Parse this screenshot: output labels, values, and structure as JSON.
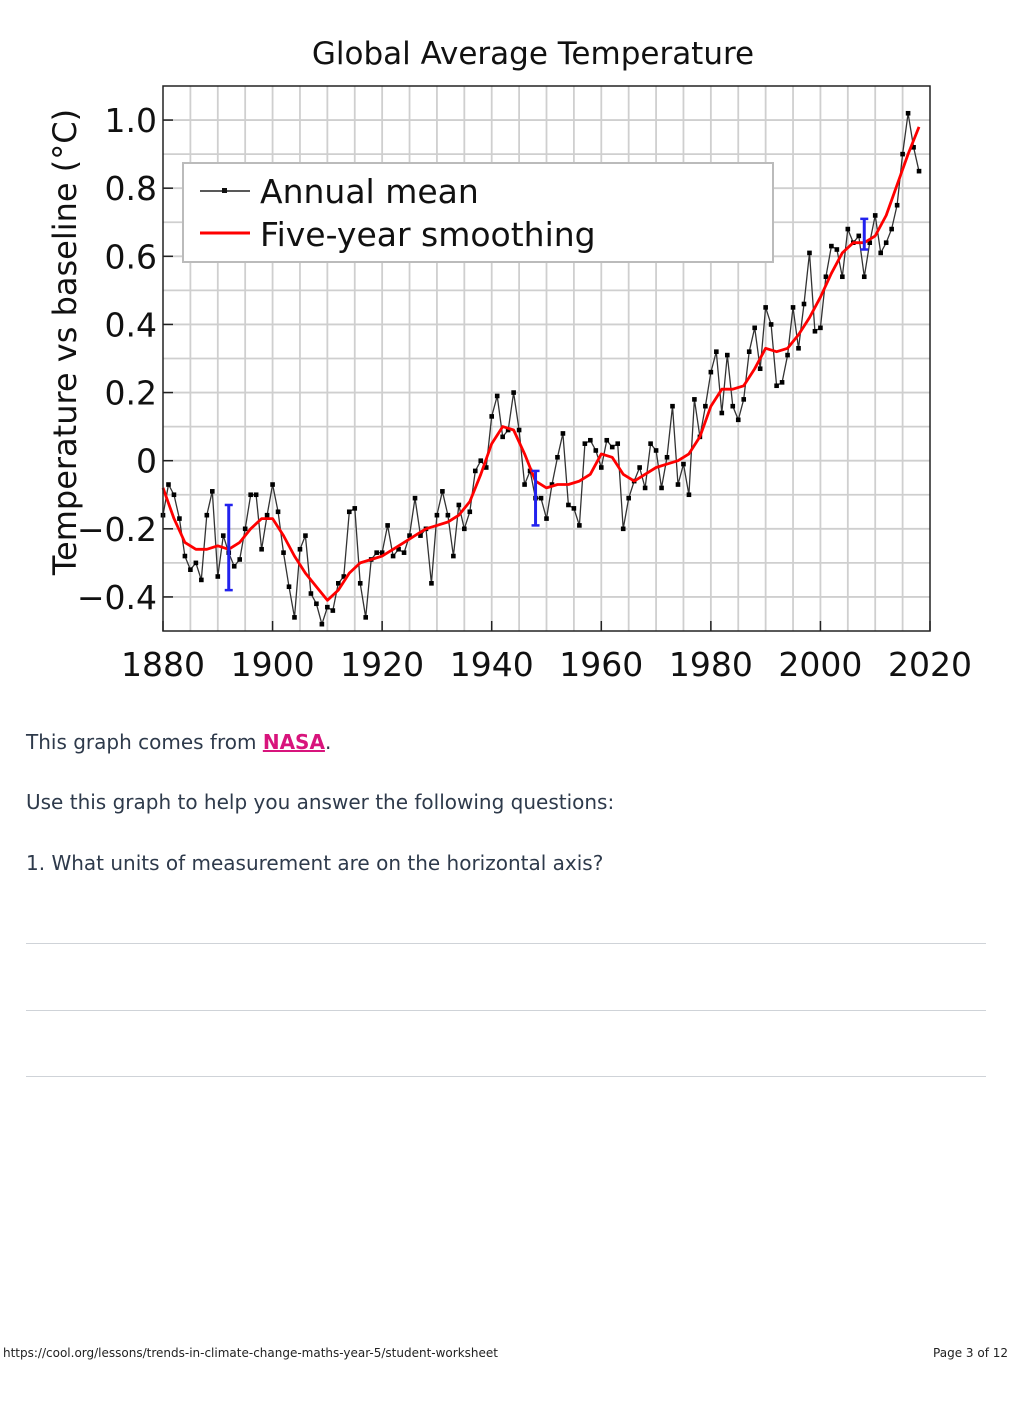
{
  "chart_data": {
    "type": "line",
    "title": "Global Average Temperature",
    "xlabel": "",
    "ylabel": "Temperature vs baseline (°C)",
    "xlim": [
      1880,
      2020
    ],
    "ylim": [
      -0.5,
      1.1
    ],
    "x_ticks": [
      1880,
      1900,
      1920,
      1940,
      1960,
      1980,
      2000,
      2020
    ],
    "y_ticks": [
      1.0,
      0.8,
      0.6,
      0.4,
      0.2,
      0,
      -0.2,
      -0.4
    ],
    "y_tick_labels": [
      "1.0",
      "0.8",
      "0.6",
      "0.4",
      "0.2",
      "0",
      "−0.2",
      "−0.4"
    ],
    "grid": true,
    "legend_position": "top-left",
    "series": [
      {
        "name": "Annual mean",
        "color": "#222222",
        "marker": "square",
        "x": [
          1880,
          1881,
          1882,
          1883,
          1884,
          1885,
          1886,
          1887,
          1888,
          1889,
          1890,
          1891,
          1892,
          1893,
          1894,
          1895,
          1896,
          1897,
          1898,
          1899,
          1900,
          1901,
          1902,
          1903,
          1904,
          1905,
          1906,
          1907,
          1908,
          1909,
          1910,
          1911,
          1912,
          1913,
          1914,
          1915,
          1916,
          1917,
          1918,
          1919,
          1920,
          1921,
          1922,
          1923,
          1924,
          1925,
          1926,
          1927,
          1928,
          1929,
          1930,
          1931,
          1932,
          1933,
          1934,
          1935,
          1936,
          1937,
          1938,
          1939,
          1940,
          1941,
          1942,
          1943,
          1944,
          1945,
          1946,
          1947,
          1948,
          1949,
          1950,
          1951,
          1952,
          1953,
          1954,
          1955,
          1956,
          1957,
          1958,
          1959,
          1960,
          1961,
          1962,
          1963,
          1964,
          1965,
          1966,
          1967,
          1968,
          1969,
          1970,
          1971,
          1972,
          1973,
          1974,
          1975,
          1976,
          1977,
          1978,
          1979,
          1980,
          1981,
          1982,
          1983,
          1984,
          1985,
          1986,
          1987,
          1988,
          1989,
          1990,
          1991,
          1992,
          1993,
          1994,
          1995,
          1996,
          1997,
          1998,
          1999,
          2000,
          2001,
          2002,
          2003,
          2004,
          2005,
          2006,
          2007,
          2008,
          2009,
          2010,
          2011,
          2012,
          2013,
          2014,
          2015,
          2016,
          2017,
          2018
        ],
        "values": [
          -0.16,
          -0.07,
          -0.1,
          -0.17,
          -0.28,
          -0.32,
          -0.3,
          -0.35,
          -0.16,
          -0.09,
          -0.34,
          -0.22,
          -0.27,
          -0.31,
          -0.29,
          -0.2,
          -0.1,
          -0.1,
          -0.26,
          -0.16,
          -0.07,
          -0.15,
          -0.27,
          -0.37,
          -0.46,
          -0.26,
          -0.22,
          -0.39,
          -0.42,
          -0.48,
          -0.43,
          -0.44,
          -0.36,
          -0.34,
          -0.15,
          -0.14,
          -0.36,
          -0.46,
          -0.29,
          -0.27,
          -0.27,
          -0.19,
          -0.28,
          -0.26,
          -0.27,
          -0.22,
          -0.11,
          -0.22,
          -0.2,
          -0.36,
          -0.16,
          -0.09,
          -0.16,
          -0.28,
          -0.13,
          -0.2,
          -0.15,
          -0.03,
          0.0,
          -0.02,
          0.13,
          0.19,
          0.07,
          0.09,
          0.2,
          0.09,
          -0.07,
          -0.03,
          -0.11,
          -0.11,
          -0.17,
          -0.07,
          0.01,
          0.08,
          -0.13,
          -0.14,
          -0.19,
          0.05,
          0.06,
          0.03,
          -0.02,
          0.06,
          0.04,
          0.05,
          -0.2,
          -0.11,
          -0.06,
          -0.02,
          -0.08,
          0.05,
          0.03,
          -0.08,
          0.01,
          0.16,
          -0.07,
          -0.01,
          -0.1,
          0.18,
          0.07,
          0.16,
          0.26,
          0.32,
          0.14,
          0.31,
          0.16,
          0.12,
          0.18,
          0.32,
          0.39,
          0.27,
          0.45,
          0.4,
          0.22,
          0.23,
          0.31,
          0.45,
          0.33,
          0.46,
          0.61,
          0.38,
          0.39,
          0.54,
          0.63,
          0.62,
          0.54,
          0.68,
          0.64,
          0.66,
          0.54,
          0.64,
          0.72,
          0.61,
          0.64,
          0.68,
          0.75,
          0.9,
          1.02,
          0.92,
          0.85
        ]
      },
      {
        "name": "Five-year smoothing",
        "color": "#ff0000",
        "x": [
          1880,
          1882,
          1884,
          1886,
          1888,
          1890,
          1892,
          1894,
          1896,
          1898,
          1900,
          1902,
          1904,
          1906,
          1908,
          1910,
          1912,
          1914,
          1916,
          1918,
          1920,
          1922,
          1924,
          1926,
          1928,
          1930,
          1932,
          1934,
          1936,
          1938,
          1940,
          1942,
          1944,
          1946,
          1948,
          1950,
          1952,
          1954,
          1956,
          1958,
          1960,
          1962,
          1964,
          1966,
          1968,
          1970,
          1972,
          1974,
          1976,
          1978,
          1980,
          1982,
          1984,
          1986,
          1988,
          1990,
          1992,
          1994,
          1996,
          1998,
          2000,
          2002,
          2004,
          2006,
          2008,
          2010,
          2012,
          2014,
          2016,
          2018
        ],
        "values": [
          -0.08,
          -0.17,
          -0.24,
          -0.26,
          -0.26,
          -0.25,
          -0.26,
          -0.24,
          -0.2,
          -0.17,
          -0.17,
          -0.22,
          -0.28,
          -0.33,
          -0.37,
          -0.41,
          -0.38,
          -0.33,
          -0.3,
          -0.29,
          -0.28,
          -0.26,
          -0.24,
          -0.22,
          -0.2,
          -0.19,
          -0.18,
          -0.16,
          -0.12,
          -0.04,
          0.05,
          0.1,
          0.09,
          0.02,
          -0.06,
          -0.08,
          -0.07,
          -0.07,
          -0.06,
          -0.04,
          0.02,
          0.01,
          -0.04,
          -0.06,
          -0.04,
          -0.02,
          -0.01,
          0.0,
          0.02,
          0.07,
          0.16,
          0.21,
          0.21,
          0.22,
          0.27,
          0.33,
          0.32,
          0.33,
          0.37,
          0.42,
          0.48,
          0.55,
          0.61,
          0.64,
          0.64,
          0.66,
          0.72,
          0.81,
          0.9,
          0.98
        ]
      }
    ],
    "error_bars": [
      {
        "x": 1892,
        "low": -0.38,
        "high": -0.13,
        "color": "#2222ee"
      },
      {
        "x": 1948,
        "low": -0.19,
        "high": -0.03,
        "color": "#2222ee"
      },
      {
        "x": 2008,
        "low": 0.62,
        "high": 0.71,
        "color": "#2222ee"
      }
    ]
  },
  "content": {
    "source_prefix": "This graph comes from ",
    "source_link": "NASA",
    "source_suffix": ".",
    "instruction": "Use this graph to help you answer the following questions:",
    "question_1": "1. What units of measurement are on the horizontal axis?"
  },
  "footer": {
    "url": "https://cool.org/lessons/trends-in-climate-change-maths-year-5/student-worksheet",
    "page": "Page 3 of 12"
  }
}
